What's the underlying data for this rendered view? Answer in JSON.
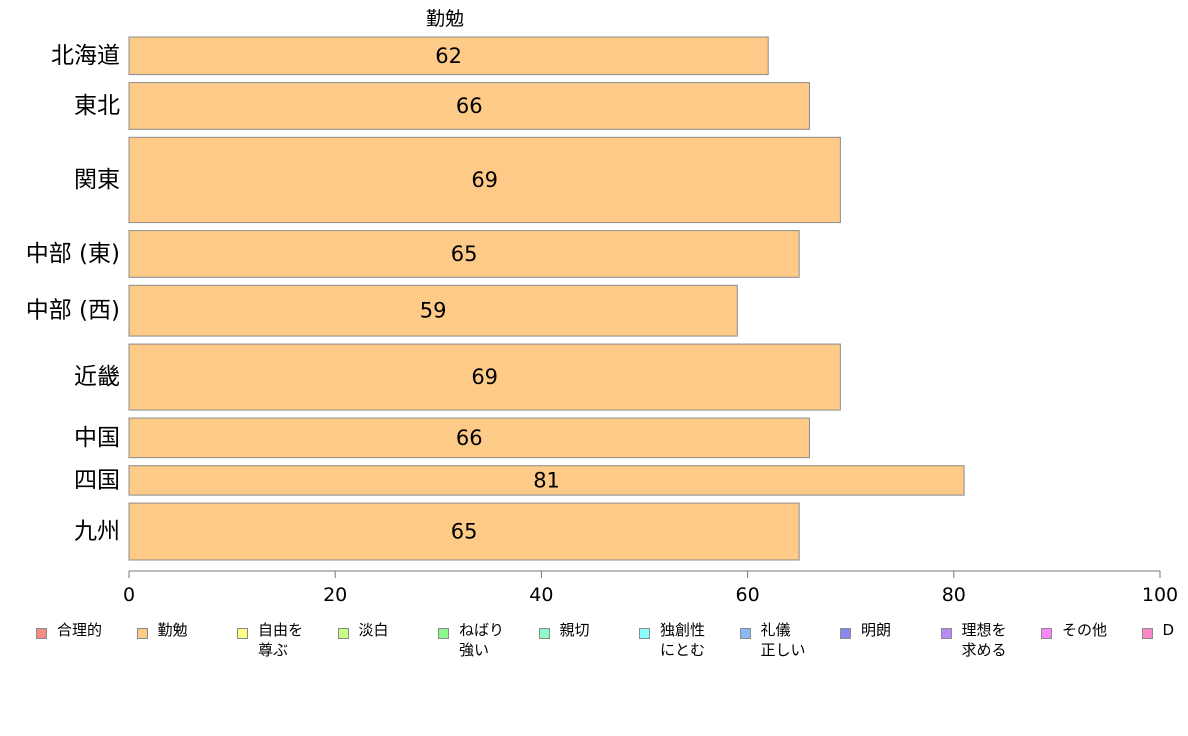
{
  "chart_data": {
    "type": "bar",
    "orientation": "horizontal",
    "title": "勤勉",
    "categories": [
      "北海道",
      "東北",
      "関東",
      "中部 (東)",
      "中部 (西)",
      "近畿",
      "中国",
      "四国",
      "九州"
    ],
    "values": [
      62,
      66,
      69,
      65,
      59,
      69,
      66,
      81,
      65
    ],
    "data_labels": [
      "62",
      "66",
      "69",
      "65",
      "59",
      "69",
      "66",
      "81",
      "65"
    ],
    "relative_band_heights": [
      37,
      46,
      84,
      46,
      50,
      65,
      39,
      29,
      56
    ],
    "xlim": [
      0,
      100
    ],
    "xticks": [
      0,
      20,
      40,
      60,
      80,
      100
    ],
    "xtick_labels": [
      "0",
      "20",
      "40",
      "60",
      "80",
      "100"
    ],
    "bar_color": "#fdca88",
    "bar_edge_color": "#8c8c8c",
    "grid": false,
    "legend_position": "bottom",
    "legend": [
      {
        "label": "合理的",
        "color": "#f88b84"
      },
      {
        "label": "勤勉",
        "color": "#fdca88"
      },
      {
        "label": "自由を\n尊ぶ",
        "color": "#fefd86"
      },
      {
        "label": "淡白",
        "color": "#c9fc84"
      },
      {
        "label": "ねばり\n強い",
        "color": "#8af98c"
      },
      {
        "label": "親切",
        "color": "#8bfcc7"
      },
      {
        "label": "独創性\nにとむ",
        "color": "#8afdfd"
      },
      {
        "label": "礼儀\n正しい",
        "color": "#8ab9f7"
      },
      {
        "label": "明朗",
        "color": "#8888ef"
      },
      {
        "label": "理想を\n求める",
        "color": "#b889f7"
      },
      {
        "label": "その他",
        "color": "#fa86fb"
      },
      {
        "label": "D",
        "color": "#fa88c9"
      }
    ]
  }
}
